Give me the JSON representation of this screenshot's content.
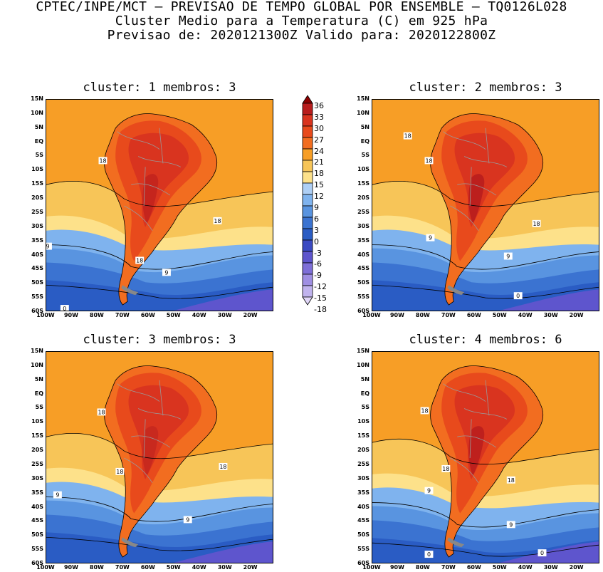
{
  "title": {
    "line1": "CPTEC/INPE/MCT – PREVISAO DE TEMPO GLOBAL POR ENSEMBLE – TQ0126L028",
    "line2": "Cluster Medio para a Temperatura (C) em 925 hPa",
    "line3": "Previsao de: 2020121300Z   Valido para: 2020122800Z"
  },
  "panels": [
    {
      "title": "cluster: 1  membros: 3"
    },
    {
      "title": "cluster: 2  membros: 3"
    },
    {
      "title": "cluster: 3  membros: 3"
    },
    {
      "title": "cluster: 4  membros: 6"
    }
  ],
  "lat_labels": [
    "15N",
    "10N",
    "5N",
    "EQ",
    "5S",
    "10S",
    "15S",
    "20S",
    "25S",
    "30S",
    "35S",
    "40S",
    "45S",
    "50S",
    "55S",
    "60S"
  ],
  "lon_labels": [
    "100W",
    "90W",
    "80W",
    "70W",
    "60W",
    "50W",
    "40W",
    "30W",
    "20W"
  ],
  "legend": {
    "labels": [
      "36",
      "33",
      "30",
      "27",
      "24",
      "21",
      "18",
      "15",
      "12",
      "9",
      "6",
      "3",
      "0",
      "-3",
      "-6",
      "-9",
      "-12",
      "-15",
      "-18"
    ],
    "colors": [
      "#8c0000",
      "#b81d1d",
      "#d9341f",
      "#e84a1c",
      "#f26d20",
      "#f79e26",
      "#f7c558",
      "#fde18a",
      "#aecff5",
      "#7fb3ee",
      "#5994e0",
      "#3b73d1",
      "#2a5cc4",
      "#3a49c2",
      "#5e55cd",
      "#7e6fd8",
      "#9f8fe3",
      "#c0b3ee",
      "#e0d6f8"
    ]
  },
  "contour_labels": {
    "p1": [
      "18",
      "18",
      "9",
      "18",
      "9",
      "0"
    ],
    "p2": [
      "18",
      "18",
      "9",
      "18",
      "9",
      "0"
    ],
    "p3": [
      "18",
      "18",
      "9",
      "18",
      "9"
    ],
    "p4": [
      "18",
      "18",
      "9",
      "18",
      "9",
      "0",
      "0"
    ]
  }
}
